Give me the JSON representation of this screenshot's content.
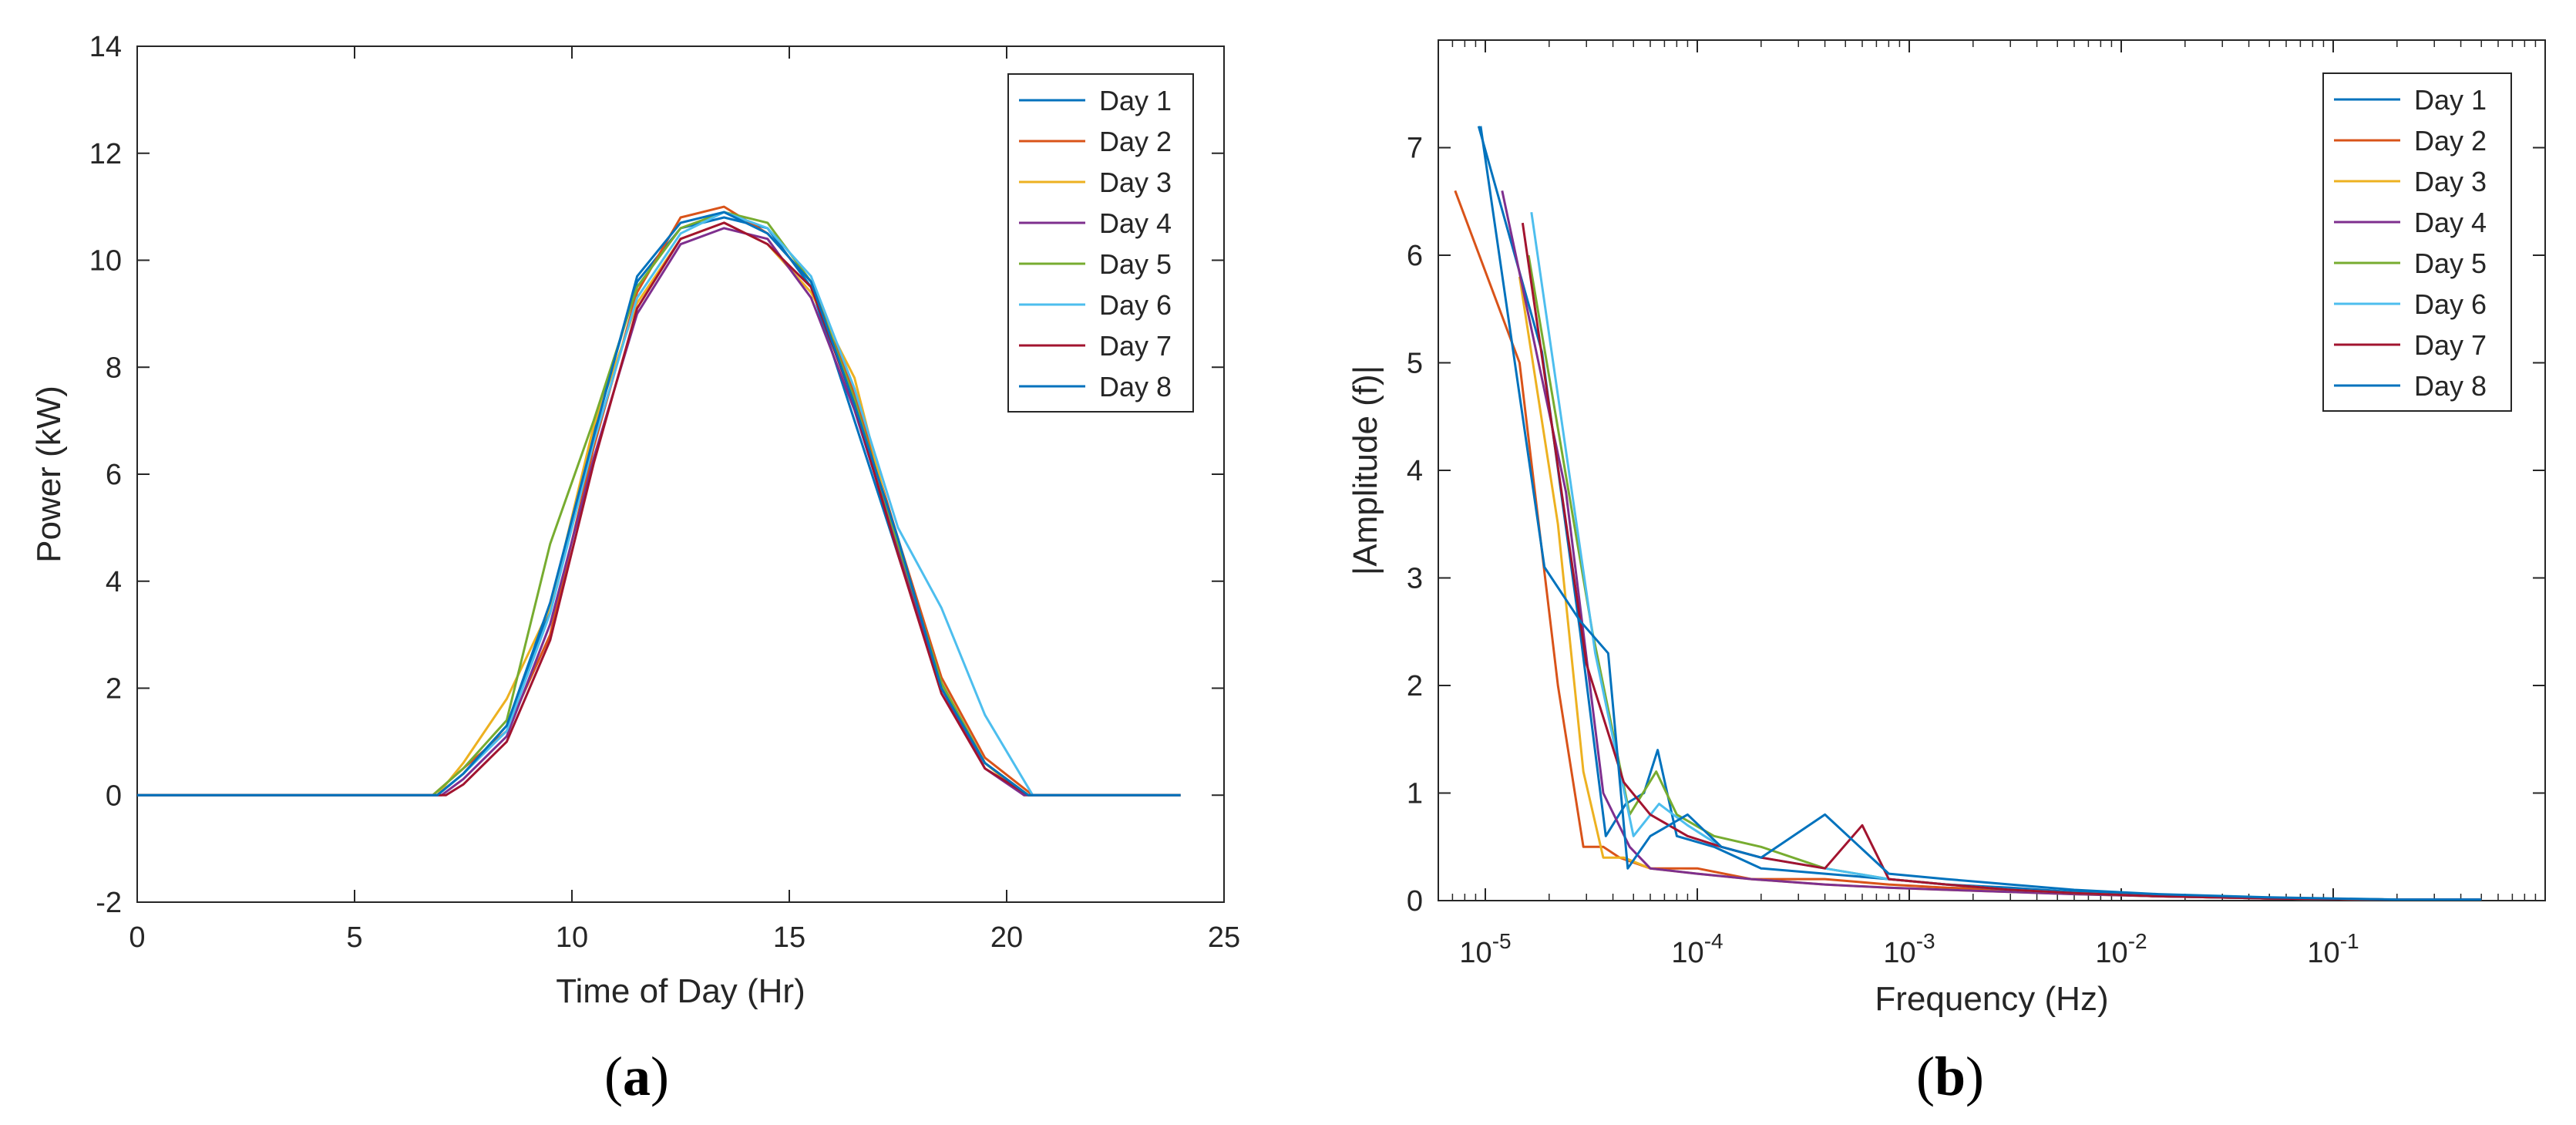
{
  "chart_data": [
    {
      "panel_label": "a",
      "type": "line",
      "xlabel": "Time of Day (Hr)",
      "ylabel": "Power (kW)",
      "xlim": [
        0,
        25
      ],
      "ylim": [
        -2,
        14
      ],
      "xticks": [
        "0",
        "5",
        "10",
        "15",
        "20",
        "25"
      ],
      "yticks": [
        "-2",
        "0",
        "2",
        "4",
        "6",
        "8",
        "10",
        "12",
        "14"
      ],
      "legend_position": "top-right",
      "grid": false,
      "series": [
        {
          "name": "Day 1",
          "color": "#0072BD",
          "x": [
            0,
            6.9,
            7.5,
            8.5,
            9.5,
            10.5,
            11.5,
            12.5,
            13.5,
            14.5,
            15.5,
            16.5,
            17.5,
            18.5,
            19.5,
            20.5,
            24
          ],
          "y": [
            0,
            0,
            0.4,
            1.3,
            3.5,
            6.8,
            9.6,
            10.6,
            10.8,
            10.6,
            9.5,
            7.0,
            4.5,
            2.0,
            0.6,
            0,
            0
          ]
        },
        {
          "name": "Day 2",
          "color": "#D95319",
          "x": [
            0,
            6.8,
            7.5,
            8.5,
            9.5,
            10.5,
            11.5,
            12.5,
            13.5,
            14.5,
            15.5,
            16.5,
            17.5,
            18.5,
            19.5,
            20.6,
            24
          ],
          "y": [
            0,
            0,
            0.5,
            1.2,
            3.0,
            6.5,
            9.4,
            10.8,
            11.0,
            10.5,
            9.6,
            7.5,
            4.8,
            2.2,
            0.7,
            0,
            0
          ]
        },
        {
          "name": "Day 3",
          "color": "#EDB120",
          "x": [
            0,
            6.9,
            7.5,
            8.5,
            9.5,
            10.5,
            11.5,
            12.5,
            13.5,
            14.5,
            15.5,
            16.5,
            17.5,
            18.5,
            19.5,
            20.4,
            24
          ],
          "y": [
            0,
            0,
            0.6,
            1.8,
            3.5,
            6.9,
            9.2,
            10.4,
            10.7,
            10.3,
            9.4,
            7.8,
            4.6,
            2.1,
            0.6,
            0,
            0
          ]
        },
        {
          "name": "Day 4",
          "color": "#7E2F8E",
          "x": [
            0,
            7.0,
            7.5,
            8.5,
            9.5,
            10.5,
            11.5,
            12.5,
            13.5,
            14.5,
            15.5,
            16.5,
            17.5,
            18.5,
            19.5,
            20.4,
            24
          ],
          "y": [
            0,
            0,
            0.3,
            1.1,
            3.2,
            6.3,
            9.0,
            10.3,
            10.6,
            10.4,
            9.3,
            7.2,
            4.6,
            2.0,
            0.5,
            0,
            0
          ]
        },
        {
          "name": "Day 5",
          "color": "#77AC30",
          "x": [
            0,
            6.8,
            7.5,
            8.5,
            9.5,
            10.5,
            11.5,
            12.5,
            13.5,
            14.5,
            15.5,
            16.5,
            17.5,
            18.5,
            19.5,
            20.5,
            24
          ],
          "y": [
            0,
            0,
            0.5,
            1.4,
            4.7,
            7.0,
            9.5,
            10.6,
            10.9,
            10.7,
            9.6,
            7.4,
            4.7,
            2.1,
            0.6,
            0,
            0
          ]
        },
        {
          "name": "Day 6",
          "color": "#4DBEEE",
          "x": [
            0,
            6.9,
            7.5,
            8.5,
            9.5,
            10.5,
            11.5,
            12.5,
            13.5,
            14.5,
            15.5,
            16.5,
            17.5,
            18.5,
            19.5,
            20.6,
            24
          ],
          "y": [
            0,
            0,
            0.4,
            1.2,
            3.4,
            6.6,
            9.3,
            10.5,
            10.9,
            10.6,
            9.7,
            7.6,
            5.0,
            3.5,
            1.5,
            0,
            0
          ]
        },
        {
          "name": "Day 7",
          "color": "#A2142F",
          "x": [
            0,
            7.1,
            7.5,
            8.5,
            9.5,
            10.5,
            11.5,
            12.5,
            13.5,
            14.5,
            15.5,
            16.5,
            17.5,
            18.5,
            19.5,
            20.5,
            24
          ],
          "y": [
            0,
            0,
            0.2,
            1.0,
            2.9,
            6.2,
            9.1,
            10.4,
            10.7,
            10.3,
            9.5,
            7.3,
            4.5,
            1.9,
            0.5,
            0,
            0
          ]
        },
        {
          "name": "Day 8",
          "color": "#0072BD",
          "x": [
            0,
            6.9,
            7.5,
            8.5,
            9.5,
            10.5,
            11.5,
            12.5,
            13.5,
            14.5,
            15.5,
            16.5,
            17.5,
            18.5,
            19.5,
            20.5,
            24
          ],
          "y": [
            0,
            0,
            0.4,
            1.3,
            3.6,
            6.7,
            9.7,
            10.7,
            10.9,
            10.5,
            9.6,
            7.3,
            4.8,
            2.0,
            0.6,
            0,
            0
          ]
        }
      ]
    },
    {
      "panel_label": "b",
      "type": "line",
      "xlabel": "Frequency (Hz)",
      "ylabel": "|Amplitude (f)|",
      "xscale": "log",
      "xlim": [
        6e-06,
        1
      ],
      "ylim": [
        0,
        8
      ],
      "xticks": [
        {
          "base": "10",
          "exp": "-5"
        },
        {
          "base": "10",
          "exp": "-4"
        },
        {
          "base": "10",
          "exp": "-3"
        },
        {
          "base": "10",
          "exp": "-2"
        },
        {
          "base": "10",
          "exp": "-1"
        }
      ],
      "yticks": [
        "0",
        "1",
        "2",
        "3",
        "4",
        "5",
        "6",
        "7"
      ],
      "legend_position": "top-right",
      "grid": false,
      "series": [
        {
          "name": "Day 1",
          "color": "#0072BD",
          "x": [
            9.3e-06,
            1.85e-05,
            2.8e-05,
            3.7e-05,
            4.6e-05,
            5.6e-05,
            6.5e-05,
            8e-05,
            0.00012,
            0.0002,
            0.0004,
            0.0008,
            0.0015,
            0.003,
            0.006,
            0.015,
            0.05,
            0.2,
            0.5
          ],
          "y": [
            7.2,
            5.1,
            2.5,
            0.6,
            0.9,
            1.0,
            1.4,
            0.6,
            0.5,
            0.3,
            0.25,
            0.2,
            0.15,
            0.12,
            0.08,
            0.05,
            0.02,
            0.01,
            0.01
          ]
        },
        {
          "name": "Day 2",
          "color": "#D95319",
          "x": [
            7.2e-06,
            1.45e-05,
            2.2e-05,
            2.9e-05,
            3.6e-05,
            4.3e-05,
            6e-05,
            0.0001,
            0.00018,
            0.0004,
            0.0008,
            0.0015,
            0.003,
            0.006,
            0.015,
            0.05,
            0.2,
            0.5
          ],
          "y": [
            6.6,
            5.0,
            2.0,
            0.5,
            0.5,
            0.4,
            0.3,
            0.3,
            0.2,
            0.2,
            0.15,
            0.12,
            0.1,
            0.07,
            0.04,
            0.02,
            0.01,
            0.01
          ]
        },
        {
          "name": "Day 3",
          "color": "#EDB120",
          "x": [
            1.45e-05,
            2.2e-05,
            2.9e-05,
            3.6e-05,
            4.5e-05,
            6e-05,
            0.0001,
            0.00018,
            0.0004,
            0.0008,
            0.0015,
            0.003,
            0.006,
            0.015,
            0.05,
            0.2,
            0.5
          ],
          "y": [
            5.8,
            3.5,
            1.2,
            0.4,
            0.4,
            0.3,
            0.25,
            0.2,
            0.15,
            0.12,
            0.1,
            0.08,
            0.06,
            0.04,
            0.02,
            0.01,
            0.01
          ]
        },
        {
          "name": "Day 4",
          "color": "#7E2F8E",
          "x": [
            1.2e-05,
            2.4e-05,
            3.6e-05,
            4.8e-05,
            6e-05,
            0.0001,
            0.00018,
            0.0004,
            0.0008,
            0.0015,
            0.003,
            0.006,
            0.015,
            0.05,
            0.2,
            0.5
          ],
          "y": [
            6.6,
            3.8,
            1.0,
            0.5,
            0.3,
            0.25,
            0.2,
            0.15,
            0.12,
            0.1,
            0.08,
            0.06,
            0.04,
            0.02,
            0.01,
            0.01
          ]
        },
        {
          "name": "Day 5",
          "color": "#77AC30",
          "x": [
            1.6e-05,
            3.2e-05,
            4.8e-05,
            6.4e-05,
            8e-05,
            0.00012,
            0.0002,
            0.0004,
            0.0008,
            0.0015,
            0.003,
            0.006,
            0.015,
            0.05,
            0.2,
            0.5
          ],
          "y": [
            6.0,
            2.5,
            0.8,
            1.2,
            0.8,
            0.6,
            0.5,
            0.3,
            0.2,
            0.15,
            0.1,
            0.07,
            0.04,
            0.02,
            0.01,
            0.01
          ]
        },
        {
          "name": "Day 6",
          "color": "#4DBEEE",
          "x": [
            1.65e-05,
            3.3e-05,
            5e-05,
            6.6e-05,
            9e-05,
            0.00013,
            0.0002,
            0.0004,
            0.0008,
            0.0015,
            0.003,
            0.006,
            0.015,
            0.05,
            0.2,
            0.5
          ],
          "y": [
            6.4,
            2.3,
            0.6,
            0.9,
            0.7,
            0.5,
            0.4,
            0.3,
            0.2,
            0.15,
            0.1,
            0.07,
            0.04,
            0.02,
            0.01,
            0.01
          ]
        },
        {
          "name": "Day 7",
          "color": "#A2142F",
          "x": [
            1.5e-05,
            3e-05,
            4.5e-05,
            6e-05,
            9e-05,
            0.00013,
            0.0002,
            0.0004,
            0.0006,
            0.0008,
            0.0015,
            0.003,
            0.006,
            0.015,
            0.05,
            0.2,
            0.5
          ],
          "y": [
            6.3,
            2.2,
            1.1,
            0.8,
            0.6,
            0.5,
            0.4,
            0.3,
            0.7,
            0.2,
            0.15,
            0.1,
            0.07,
            0.04,
            0.02,
            0.01,
            0.01
          ]
        },
        {
          "name": "Day 8",
          "color": "#0072BD",
          "x": [
            9.5e-06,
            1.9e-05,
            2.8e-05,
            3.8e-05,
            4.7e-05,
            6e-05,
            9e-05,
            0.00013,
            0.0002,
            0.0004,
            0.0008,
            0.0015,
            0.003,
            0.006,
            0.015,
            0.05,
            0.2,
            0.5
          ],
          "y": [
            7.2,
            3.1,
            2.6,
            2.3,
            0.3,
            0.6,
            0.8,
            0.5,
            0.4,
            0.8,
            0.25,
            0.2,
            0.15,
            0.1,
            0.06,
            0.03,
            0.01,
            0.01
          ]
        }
      ]
    }
  ]
}
